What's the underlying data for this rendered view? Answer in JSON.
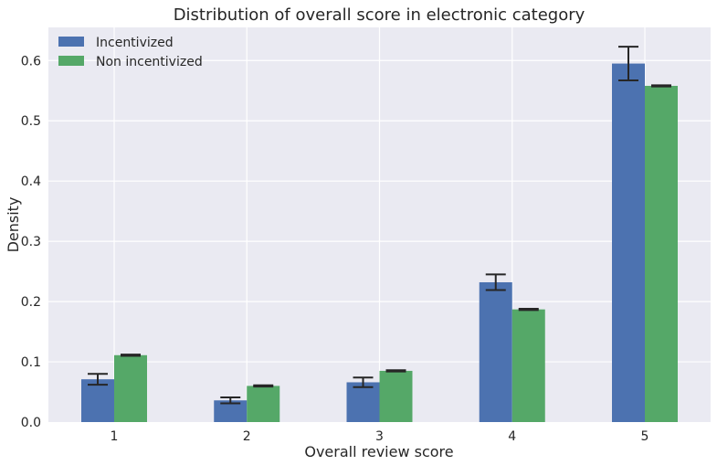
{
  "chart_data": {
    "type": "bar",
    "title": "Distribution of overall score in electronic category",
    "xlabel": "Overall review score",
    "ylabel": "Density",
    "categories": [
      "1",
      "2",
      "3",
      "4",
      "5"
    ],
    "ylim": [
      0,
      0.655
    ],
    "yticks": [
      "0.0",
      "0.1",
      "0.2",
      "0.3",
      "0.4",
      "0.5",
      "0.6"
    ],
    "grid": true,
    "legend_position": "top-left",
    "series": [
      {
        "name": "Incentivized",
        "color": "#4C72B0",
        "values": [
          0.071,
          0.036,
          0.066,
          0.232,
          0.595
        ],
        "error": [
          0.009,
          0.005,
          0.008,
          0.013,
          0.028
        ]
      },
      {
        "name": "Non incentivized",
        "color": "#55A868",
        "values": [
          0.111,
          0.06,
          0.085,
          0.187,
          0.558
        ],
        "error": [
          0.001,
          0.001,
          0.001,
          0.001,
          0.001
        ]
      }
    ]
  }
}
